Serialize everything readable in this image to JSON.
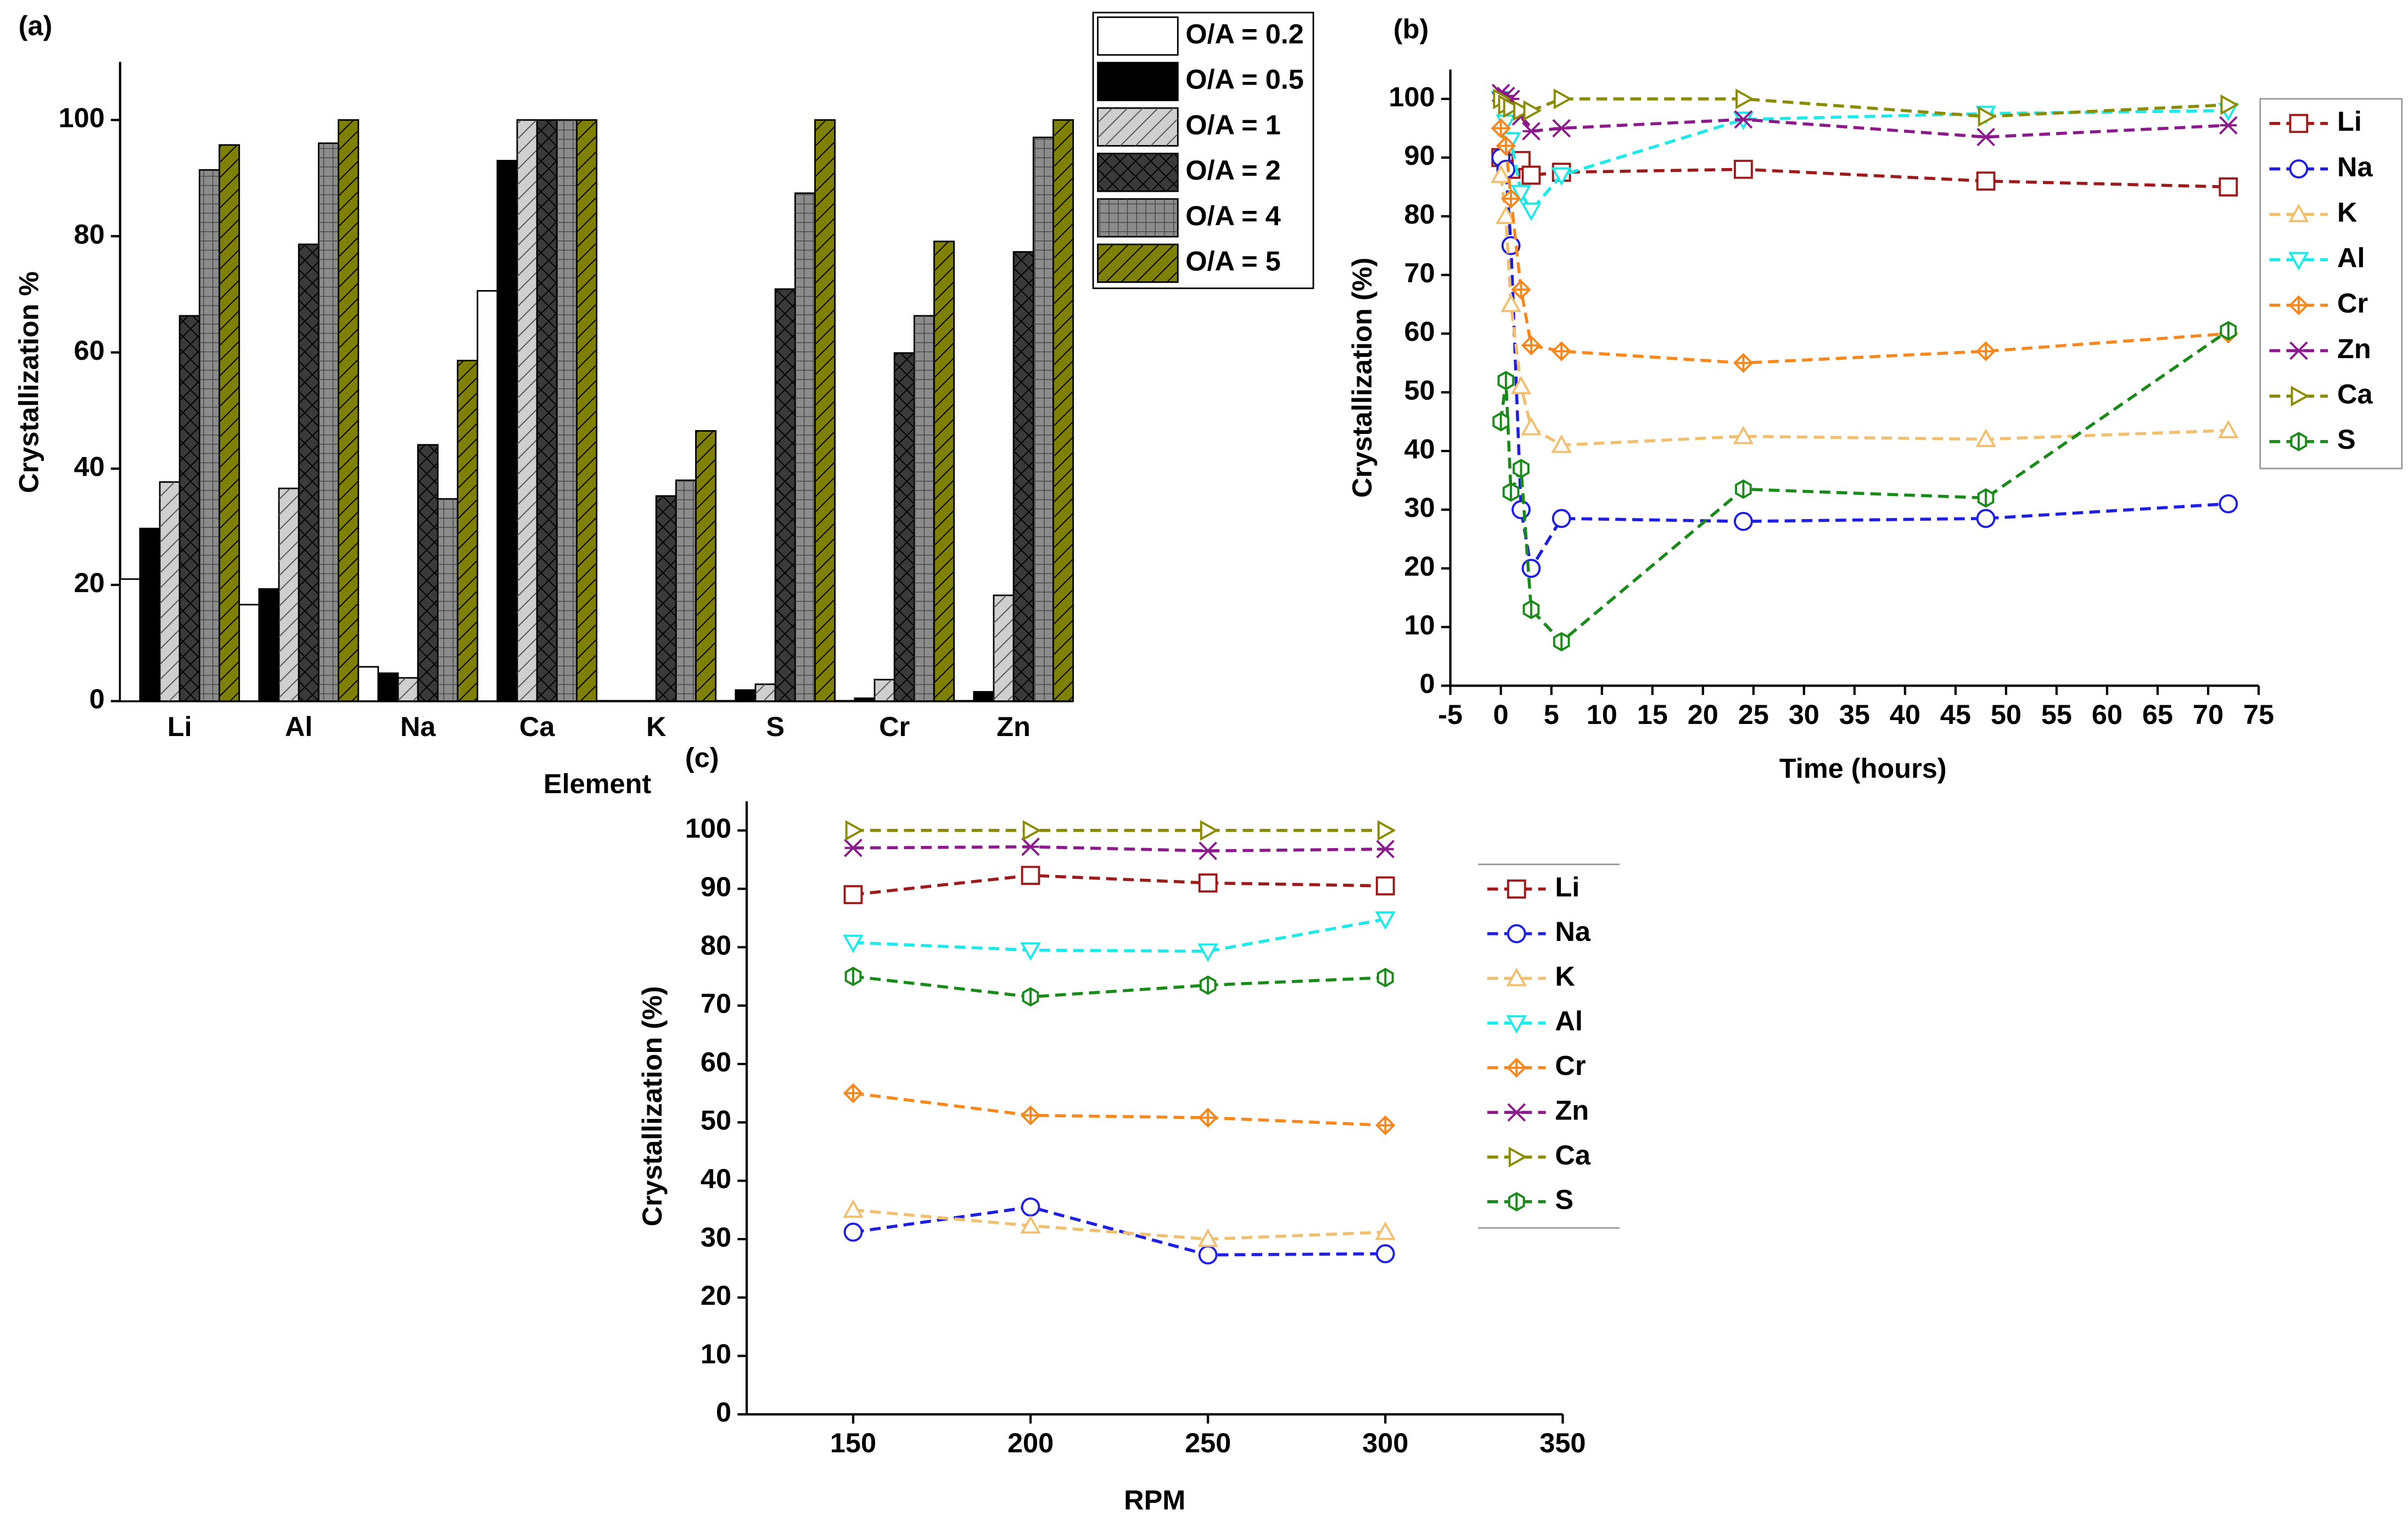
{
  "chart_data": [
    {
      "type": "bar",
      "title": "(a)",
      "y_label": "Crystallization %",
      "x_label": "Element",
      "categories": [
        "Li",
        "Al",
        "Na",
        "Ca",
        "K",
        "S",
        "Cr",
        "Zn"
      ],
      "ylim": [
        0,
        110
      ],
      "yticks": [
        0,
        20,
        40,
        60,
        80,
        100
      ],
      "series": [
        {
          "name": "O/A = 0.2",
          "color": "#ffffff",
          "values": [
            21,
            16.6,
            5.9,
            70.6,
            0,
            0,
            0,
            0
          ]
        },
        {
          "name": "O/A = 0.5",
          "color": "#000000",
          "values": [
            29.7,
            19.3,
            4.8,
            93,
            0,
            1.9,
            0.5,
            1.6
          ]
        },
        {
          "name": "O/A = 1",
          "color": "#cfcfcf",
          "values": [
            37.7,
            36.6,
            4,
            100,
            0,
            2.9,
            3.7,
            18.2
          ]
        },
        {
          "name": "O/A = 2",
          "color": "#3a3a3a",
          "values": [
            66.3,
            78.6,
            44.1,
            100,
            35.3,
            70.9,
            59.9,
            77.3
          ]
        },
        {
          "name": "O/A = 4",
          "color": "#8c8c8c",
          "values": [
            91.4,
            96,
            34.8,
            100,
            38,
            87.4,
            66.3,
            97
          ]
        },
        {
          "name": "O/A = 5",
          "color": "#808000",
          "values": [
            95.7,
            100,
            58.6,
            100,
            46.5,
            100,
            79.1,
            100
          ]
        }
      ]
    },
    {
      "type": "line",
      "title": "(b)",
      "y_label": "Crystallization (%)",
      "x_label": "Time (hours)",
      "x": [
        0,
        0.5,
        1,
        2,
        3,
        6,
        24,
        48,
        72
      ],
      "xlim": [
        -5,
        75
      ],
      "xticks": [
        -5,
        0,
        5,
        10,
        15,
        20,
        25,
        30,
        35,
        40,
        45,
        50,
        55,
        60,
        65,
        70,
        75
      ],
      "ylim": [
        0,
        105
      ],
      "yticks": [
        0,
        10,
        20,
        30,
        40,
        50,
        60,
        70,
        80,
        90,
        100
      ],
      "series": [
        {
          "name": "Li",
          "color": "#9b1c1c",
          "marker": "square",
          "values": [
            90,
            89,
            88,
            89.5,
            87,
            87.5,
            88,
            86,
            85
          ]
        },
        {
          "name": "Na",
          "color": "#1f1fe0",
          "marker": "circle",
          "values": [
            90,
            88,
            75,
            30,
            20,
            28.5,
            28,
            28.5,
            31
          ]
        },
        {
          "name": "K",
          "color": "#f0c070",
          "marker": "triangle-up",
          "values": [
            87,
            80,
            65,
            51,
            44,
            41,
            42.5,
            42,
            43.5
          ]
        },
        {
          "name": "Al",
          "color": "#1de9e9",
          "marker": "triangle-down",
          "values": [
            100,
            96,
            93,
            84,
            81,
            87,
            96.5,
            97.5,
            98
          ]
        },
        {
          "name": "Cr",
          "color": "#f5891f",
          "marker": "diamond-plus",
          "values": [
            95,
            92,
            83,
            67.5,
            58,
            57,
            55,
            57,
            60
          ]
        },
        {
          "name": "Zn",
          "color": "#8b1a8b",
          "marker": "star",
          "values": [
            101,
            100.5,
            100,
            97,
            94.5,
            95,
            96.5,
            93.5,
            95.5
          ]
        },
        {
          "name": "Ca",
          "color": "#8b8b00",
          "marker": "triangle-right",
          "values": [
            100,
            99,
            98.5,
            98,
            98,
            100,
            100,
            97,
            99
          ]
        },
        {
          "name": "S",
          "color": "#1a8a1a",
          "marker": "hexagon",
          "values": [
            45,
            52,
            33,
            37,
            13,
            7.5,
            33.5,
            32,
            60.5
          ]
        }
      ]
    },
    {
      "type": "line",
      "title": "(c)",
      "y_label": "Crystallization (%)",
      "x_label": "RPM",
      "x": [
        150,
        200,
        250,
        300
      ],
      "xlim": [
        120,
        350
      ],
      "xticks": [
        150,
        200,
        250,
        300,
        350
      ],
      "ylim": [
        0,
        105
      ],
      "yticks": [
        0,
        10,
        20,
        30,
        40,
        50,
        60,
        70,
        80,
        90,
        100
      ],
      "series": [
        {
          "name": "Li",
          "color": "#9b1c1c",
          "marker": "square",
          "values": [
            89,
            92.3,
            91,
            90.5
          ]
        },
        {
          "name": "Na",
          "color": "#1f1fe0",
          "marker": "circle",
          "values": [
            31.2,
            35.5,
            27.3,
            27.5
          ]
        },
        {
          "name": "K",
          "color": "#f0c070",
          "marker": "triangle-up",
          "values": [
            35,
            32.3,
            30,
            31.2
          ]
        },
        {
          "name": "Al",
          "color": "#1de9e9",
          "marker": "triangle-down",
          "values": [
            80.8,
            79.5,
            79.3,
            84.8
          ]
        },
        {
          "name": "Cr",
          "color": "#f5891f",
          "marker": "diamond-plus",
          "values": [
            55,
            51.2,
            50.8,
            49.5
          ]
        },
        {
          "name": "Zn",
          "color": "#8b1a8b",
          "marker": "star",
          "values": [
            97,
            97.2,
            96.5,
            96.8
          ]
        },
        {
          "name": "Ca",
          "color": "#8b8b00",
          "marker": "triangle-right",
          "values": [
            100,
            100,
            100,
            100
          ]
        },
        {
          "name": "S",
          "color": "#1a8a1a",
          "marker": "hexagon",
          "values": [
            75,
            71.5,
            73.5,
            74.8
          ]
        }
      ]
    }
  ]
}
